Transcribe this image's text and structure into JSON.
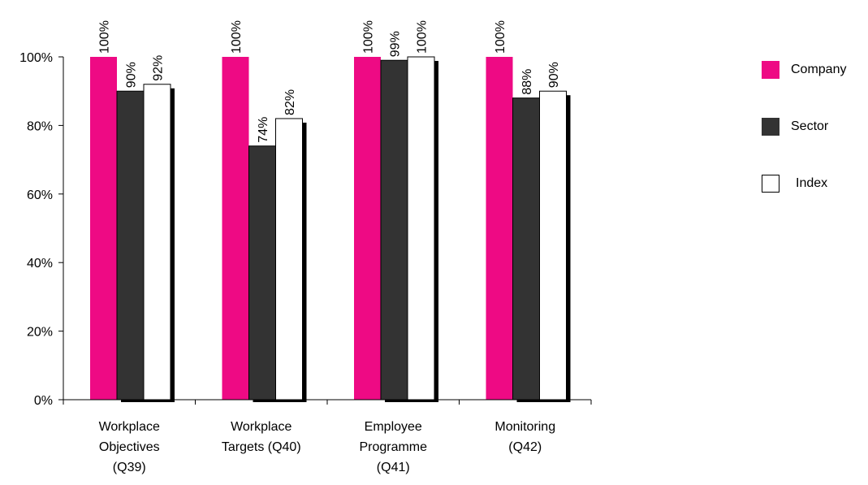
{
  "chart_data": {
    "type": "bar",
    "categories": [
      [
        "Workplace",
        "Objectives",
        "(Q39)"
      ],
      [
        "Workplace",
        "Targets (Q40)"
      ],
      [
        "Employee",
        "Programme",
        "(Q41)"
      ],
      [
        "Monitoring",
        "(Q42)"
      ]
    ],
    "series": [
      {
        "name": "Company",
        "color": "#EE0A84",
        "values": [
          100,
          100,
          100,
          100
        ],
        "labels": [
          "100%",
          "100%",
          "100%",
          "100%"
        ]
      },
      {
        "name": "Sector",
        "color": "#333333",
        "values": [
          90,
          74,
          99,
          88
        ],
        "labels": [
          "90%",
          "74%",
          "99%",
          "88%"
        ]
      },
      {
        "name": "Index",
        "color": "#FFFFFF",
        "values": [
          92,
          82,
          100,
          90
        ],
        "labels": [
          "92%",
          "82%",
          "100%",
          "90%"
        ]
      }
    ],
    "ylim": [
      0,
      100
    ],
    "yticks": [
      0,
      20,
      40,
      60,
      80,
      100
    ],
    "ytick_labels": [
      "0%",
      "20%",
      "40%",
      "60%",
      "80%",
      "100%"
    ],
    "title": "",
    "xlabel": "",
    "ylabel": "",
    "grid": false,
    "legend_position": "right"
  }
}
